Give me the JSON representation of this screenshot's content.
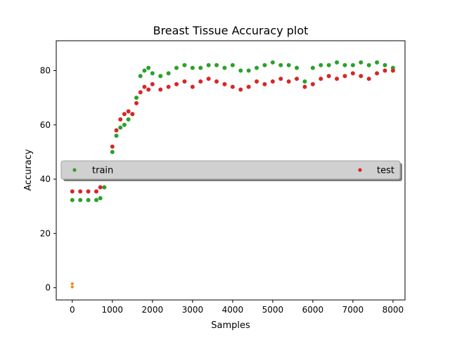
{
  "chart_data": {
    "type": "scatter",
    "title": "Breast Tissue Accuracy plot",
    "xlabel": "Samples",
    "ylabel": "Accuracy",
    "xlim": [
      -400,
      8300
    ],
    "ylim": [
      -4.5,
      91
    ],
    "xticks": [
      0,
      1000,
      2000,
      3000,
      4000,
      5000,
      6000,
      7000,
      8000
    ],
    "yticks": [
      0,
      20,
      40,
      60,
      80
    ],
    "grid": false,
    "legend": {
      "placement": "center-left",
      "entries": [
        "train",
        "test"
      ]
    },
    "colors": {
      "train": "#2ca02c",
      "test": "#d62728",
      "other": "#ff7f0e"
    },
    "series": [
      {
        "name": "train",
        "color": "#2ca02c",
        "x": [
          0,
          200,
          400,
          600,
          700,
          800,
          900,
          1000,
          1100,
          1200,
          1300,
          1400,
          1500,
          1600,
          1700,
          1800,
          1900,
          2000,
          2200,
          2400,
          2600,
          2800,
          3000,
          3200,
          3400,
          3600,
          3800,
          4000,
          4200,
          4400,
          4600,
          4800,
          5000,
          5200,
          5400,
          5600,
          5800,
          6000,
          6200,
          6400,
          6600,
          6800,
          7000,
          7200,
          7400,
          7600,
          7800,
          8000
        ],
        "y": [
          32.3,
          32.3,
          32.3,
          32.3,
          33,
          37,
          42,
          50,
          56,
          59,
          60,
          62,
          64,
          70,
          78,
          80,
          81,
          79,
          78,
          79,
          81,
          82,
          81,
          81,
          82,
          82,
          81,
          82,
          80,
          80,
          81,
          82,
          83,
          82,
          82,
          81,
          76,
          81,
          82,
          82,
          83,
          82,
          82,
          83,
          82,
          83,
          82,
          81
        ]
      },
      {
        "name": "test",
        "color": "#d62728",
        "x": [
          0,
          200,
          400,
          600,
          700,
          800,
          900,
          1000,
          1100,
          1200,
          1300,
          1400,
          1500,
          1600,
          1700,
          1800,
          1900,
          2000,
          2200,
          2400,
          2600,
          2800,
          3000,
          3200,
          3400,
          3600,
          3800,
          4000,
          4200,
          4400,
          4600,
          4800,
          5000,
          5200,
          5400,
          5600,
          5800,
          6000,
          6200,
          6400,
          6600,
          6800,
          7000,
          7200,
          7400,
          7600,
          7800,
          8000
        ],
        "y": [
          35.5,
          35.5,
          35.5,
          35.5,
          37,
          41,
          45,
          52,
          58,
          62,
          64,
          65,
          64,
          68,
          72,
          74,
          73,
          75,
          73,
          74,
          75,
          76,
          74,
          76,
          77,
          76,
          75,
          74,
          73,
          74,
          76,
          75,
          76,
          77,
          76,
          77,
          74,
          75,
          77,
          78,
          77,
          78,
          79,
          78,
          77,
          79,
          80,
          80
        ]
      },
      {
        "name": "",
        "color": "#ff7f0e",
        "x": [
          0,
          0
        ],
        "y": [
          0.3,
          1.5
        ]
      }
    ]
  }
}
